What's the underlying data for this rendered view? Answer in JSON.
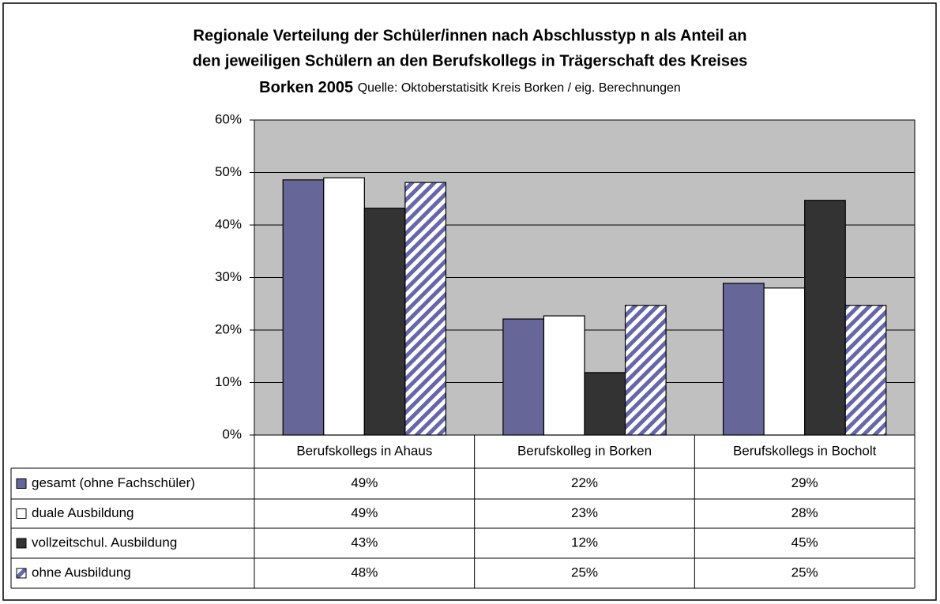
{
  "chart_data": {
    "type": "bar",
    "title": [
      "Regionale Verteilung der Schüler/innen nach Abschlusstyp n als Anteil an",
      "den jeweiligen Schülern an den Berufskollegs in Trägerschaft des Kreises",
      "Borken 2005"
    ],
    "subtitle": "Quelle: Oktoberstatisitk Kreis Borken / eig. Berechnungen",
    "categories": [
      "Berufskollegs in Ahaus",
      "Berufskolleg in Borken",
      "Berufskollegs in Bocholt"
    ],
    "series": [
      {
        "name": "gesamt (ohne Fachschüler)",
        "color": "#666699",
        "values": [
          48.6,
          22.1,
          28.9
        ],
        "value_labels": [
          "49%",
          "22%",
          "29%"
        ]
      },
      {
        "name": "duale Ausbildung",
        "color": "#ffffff",
        "values": [
          49.0,
          22.7,
          28.0
        ],
        "value_labels": [
          "49%",
          "23%",
          "28%"
        ]
      },
      {
        "name": "vollzeitschul. Ausbildung",
        "color": "#333333",
        "values": [
          43.2,
          11.9,
          44.7
        ],
        "value_labels": [
          "43%",
          "12%",
          "45%"
        ]
      },
      {
        "name": "ohne Ausbildung",
        "color": "#6666aa",
        "pattern": "diagonal",
        "values": [
          48.1,
          24.7,
          24.7
        ],
        "value_labels": [
          "48%",
          "25%",
          "25%"
        ]
      }
    ],
    "ylim": [
      0,
      60
    ],
    "yticks": [
      {
        "value": 0,
        "label": "0%"
      },
      {
        "value": 10,
        "label": "10%"
      },
      {
        "value": 20,
        "label": "20%"
      },
      {
        "value": 30,
        "label": "30%"
      },
      {
        "value": 40,
        "label": "40%"
      },
      {
        "value": 50,
        "label": "50%"
      },
      {
        "value": 60,
        "label": "60%"
      }
    ],
    "grid": true,
    "plot_background": "#c0c0c0"
  }
}
